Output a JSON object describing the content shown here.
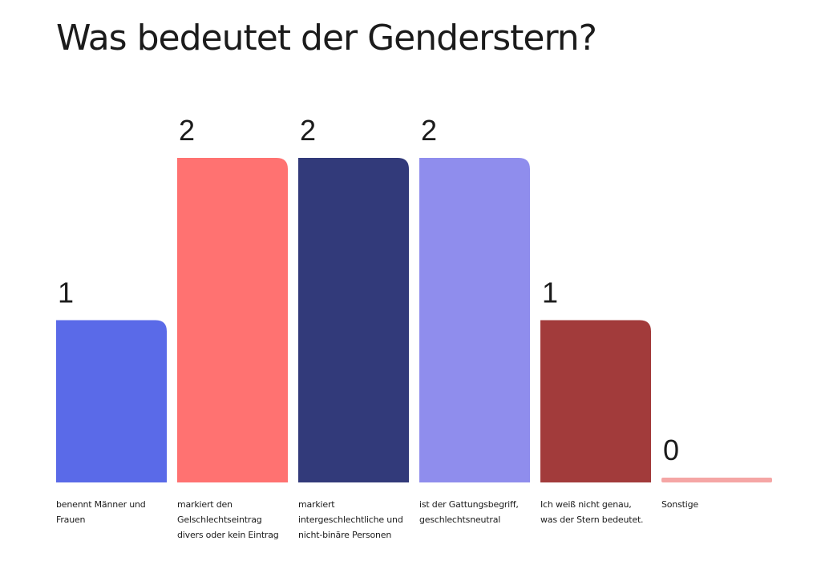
{
  "page": {
    "title": "Was bedeutet der Genderstern?"
  },
  "chart_data": {
    "type": "bar",
    "title": "Was bedeutet der Genderstern?",
    "categories": [
      "benennt Männer und Frauen",
      "markiert den Gelschlechtseintrag divers oder kein Eintrag",
      "markiert intergeschlechtliche und nicht-binäre Personen",
      "ist der Gattungsbegriff, geschlechtsneutral",
      "Ich weiß nicht genau, was der Stern bedeutet.",
      "Sonstige"
    ],
    "values": [
      1,
      2,
      2,
      2,
      1,
      0
    ],
    "colors": [
      "#5a6ae8",
      "#ff7271",
      "#323a7a",
      "#8f8ded",
      "#a23b3b",
      "#f5a6a5"
    ],
    "ylim": [
      0,
      2
    ],
    "grid": false,
    "legend": "none"
  }
}
